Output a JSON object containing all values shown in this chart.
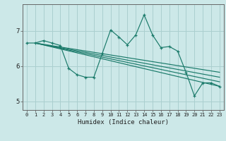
{
  "xlabel": "Humidex (Indice chaleur)",
  "bg_color": "#cce8e8",
  "grid_color": "#aacfcf",
  "line_color": "#1a7a6a",
  "xlim": [
    -0.5,
    23.5
  ],
  "ylim": [
    4.75,
    7.75
  ],
  "yticks": [
    5,
    6,
    7
  ],
  "xticks": [
    0,
    1,
    2,
    3,
    4,
    5,
    6,
    7,
    8,
    9,
    10,
    11,
    12,
    13,
    14,
    15,
    16,
    17,
    18,
    19,
    20,
    21,
    22,
    23
  ],
  "jagged_line": {
    "x": [
      0,
      1,
      2,
      3,
      4,
      5,
      6,
      7,
      8,
      9,
      10,
      11,
      12,
      13,
      14,
      15,
      16,
      17,
      18,
      19,
      20,
      21,
      22,
      23
    ],
    "y": [
      6.65,
      6.65,
      6.72,
      6.65,
      6.58,
      5.93,
      5.75,
      5.68,
      5.68,
      6.35,
      7.02,
      6.82,
      6.6,
      6.88,
      7.45,
      6.88,
      6.52,
      6.55,
      6.42,
      5.82,
      5.15,
      5.52,
      5.52,
      5.42
    ]
  },
  "straight_lines": [
    {
      "x": [
        1,
        23
      ],
      "y": [
        6.65,
        5.42
      ]
    },
    {
      "x": [
        1,
        23
      ],
      "y": [
        6.65,
        5.55
      ]
    },
    {
      "x": [
        1,
        23
      ],
      "y": [
        6.65,
        5.68
      ]
    },
    {
      "x": [
        1,
        23
      ],
      "y": [
        6.65,
        5.82
      ]
    }
  ]
}
